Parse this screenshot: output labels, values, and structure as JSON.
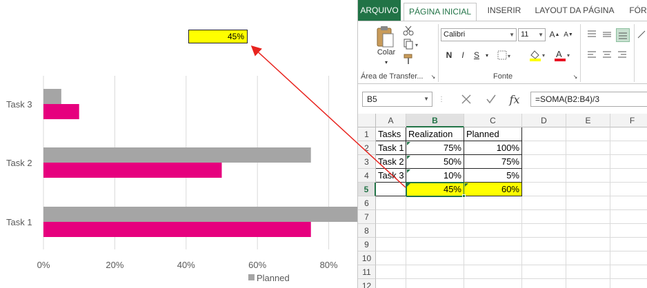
{
  "chart_data": {
    "type": "bar",
    "orientation": "horizontal",
    "categories": [
      "Task 1",
      "Task 2",
      "Task 3"
    ],
    "series": [
      {
        "name": "Planned",
        "values": [
          100,
          75,
          5
        ],
        "color": "#a5a5a5"
      },
      {
        "name": "",
        "values": [
          75,
          50,
          10
        ],
        "color": "#e6007e"
      }
    ],
    "x_ticks": [
      "0%",
      "20%",
      "40%",
      "60%",
      "80%"
    ],
    "xlim": [
      0,
      100
    ],
    "grid": true,
    "legend": "bottom",
    "callout_value": "45%",
    "callout_color": "#ffff00"
  },
  "excel": {
    "tabs": {
      "file": "ARQUIVO",
      "home": "PÁGINA INICIAL",
      "insert": "INSERIR",
      "layout": "LAYOUT DA PÁGINA",
      "formulas": "FÓR"
    },
    "ribbon": {
      "paste_label": "Colar",
      "clipboard_group": "Área de Transfer...",
      "font_group": "Fonte",
      "font_name": "Calibri",
      "font_size": "11",
      "bold": "N",
      "italic": "I",
      "underline": "S"
    },
    "name_box": "B5",
    "formula": "=SOMA(B2:B4)/3",
    "fx": "fx",
    "accent_color": "#217346",
    "columns": [
      "A",
      "B",
      "C",
      "D",
      "E",
      "F"
    ],
    "rows": [
      "1",
      "2",
      "3",
      "4",
      "5",
      "6",
      "7",
      "8",
      "9",
      "10",
      "11",
      "12"
    ],
    "cells": {
      "A1": "Tasks",
      "B1": "Realization",
      "C1": "Planned",
      "A2": "Task 1",
      "B2": "75%",
      "C2": "100%",
      "A3": "Task 2",
      "B3": "50%",
      "C3": "75%",
      "A4": "Task 3",
      "B4": "10%",
      "C4": "5%",
      "A5": "",
      "B5": "45%",
      "C5": "60%"
    }
  }
}
